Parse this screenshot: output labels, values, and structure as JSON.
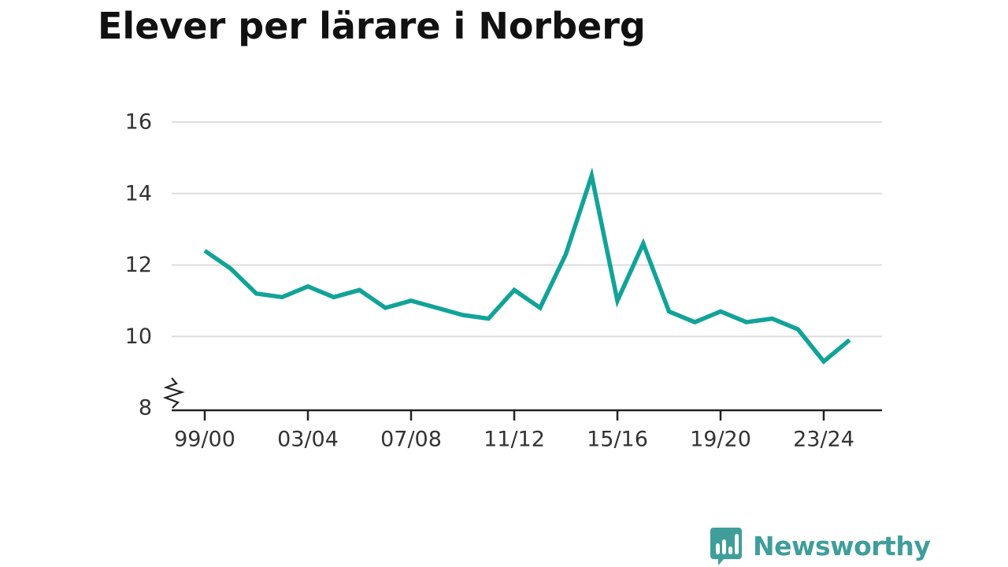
{
  "chart_data": {
    "type": "line",
    "title": "Elever per lärare i Norberg",
    "xlabel": "",
    "ylabel": "",
    "x": [
      "99/00",
      "00/01",
      "01/02",
      "02/03",
      "03/04",
      "04/05",
      "05/06",
      "06/07",
      "07/08",
      "08/09",
      "09/10",
      "10/11",
      "11/12",
      "12/13",
      "13/14",
      "14/15",
      "15/16",
      "16/17",
      "17/18",
      "18/19",
      "19/20",
      "20/21",
      "21/22",
      "22/23",
      "23/24",
      "24/25"
    ],
    "x_tick_labels": [
      "99/00",
      "03/04",
      "07/08",
      "11/12",
      "15/16",
      "19/20",
      "23/24"
    ],
    "series": [
      {
        "values": [
          12.4,
          11.9,
          11.2,
          11.1,
          11.4,
          11.1,
          11.3,
          10.8,
          11.0,
          10.8,
          10.6,
          10.5,
          11.3,
          10.8,
          12.3,
          14.5,
          11.0,
          12.6,
          10.7,
          10.4,
          10.7,
          10.4,
          10.5,
          10.2,
          9.3,
          9.9
        ]
      }
    ],
    "y_ticks": [
      8,
      10,
      12,
      14,
      16
    ],
    "ylim": [
      8,
      16
    ],
    "y_axis_break": true,
    "grid": true,
    "line_color": "#12a398"
  },
  "branding": {
    "name": "Newsworthy",
    "color": "#3f9e9a"
  }
}
